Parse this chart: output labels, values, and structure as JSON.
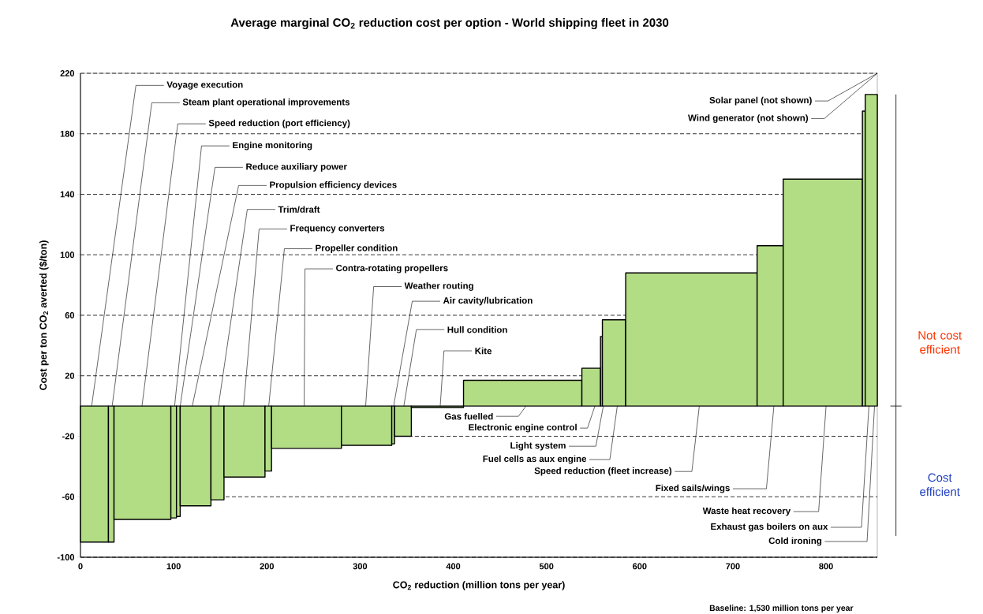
{
  "chart_data": {
    "type": "histogram",
    "title": "Average marginal CO$_{2}$ reduction cost per option - World shipping fleet in 2030",
    "xlabel": "CO$_{2}$ reduction (million tons per year)",
    "ylabel": "Cost per ton CO$_{2}$ averted ($/ton)",
    "bins": [
      0,
      30,
      36,
      97,
      103,
      107,
      140,
      154,
      198,
      205,
      280,
      334,
      337,
      355,
      411,
      538,
      558,
      560,
      585,
      726,
      754,
      839,
      842,
      855
    ],
    "values": [
      -90,
      -90,
      -75,
      -74,
      -73,
      -66,
      -62,
      -47,
      -43,
      -28,
      -26,
      -25,
      -20,
      -1,
      17,
      25,
      46,
      57,
      88,
      106,
      150,
      195,
      206
    ],
    "color": "#b3dd85",
    "xlim": [
      0,
      855
    ],
    "ylim": [
      -100,
      220
    ],
    "xticks": [
      0,
      100,
      200,
      300,
      400,
      500,
      600,
      700,
      800
    ],
    "yticks": [
      -100,
      -60,
      -20,
      20,
      60,
      100,
      140,
      180,
      220
    ],
    "grid": "y",
    "line_style": "dashed",
    "annotations": [
      {
        "text": "Voyage execution",
        "x": 12,
        "y": 0
      },
      {
        "text": "Steam plant operational improvements",
        "x": 34,
        "y": 0
      },
      {
        "text": "Speed reduction (port efficiency)",
        "x": 66,
        "y": 0
      },
      {
        "text": "Engine monitoring",
        "x": 101,
        "y": 0
      },
      {
        "text": "Reduce auxiliary power",
        "x": 107,
        "y": 0
      },
      {
        "text": "Propulsion efficiency devices",
        "x": 120,
        "y": 0
      },
      {
        "text": "Trim/draft",
        "x": 148,
        "y": 0
      },
      {
        "text": "Frequency converters",
        "x": 175,
        "y": 0
      },
      {
        "text": "Propeller condition",
        "x": 202,
        "y": 0
      },
      {
        "text": "Contra-rotating propellers",
        "x": 240,
        "y": 0
      },
      {
        "text": "Weather routing",
        "x": 306,
        "y": 0
      },
      {
        "text": "Air cavity/lubrication",
        "x": 336,
        "y": 0
      },
      {
        "text": "Hull condition",
        "x": 347,
        "y": 0
      },
      {
        "text": "Kite",
        "x": 386,
        "y": 0
      },
      {
        "text": "Gas fuelled",
        "x": 478,
        "y": 0
      },
      {
        "text": "Electronic engine control",
        "x": 552,
        "y": 0
      },
      {
        "text": "Light system",
        "x": 561,
        "y": 0
      },
      {
        "text": "Fuel cells as aux engine",
        "x": 576,
        "y": 0
      },
      {
        "text": "Speed reduction (fleet increase)",
        "x": 664,
        "y": 0
      },
      {
        "text": "Fixed sails/wings",
        "x": 744,
        "y": 0
      },
      {
        "text": "Waste heat recovery",
        "x": 800,
        "y": 0
      },
      {
        "text": "Exhaust gas boilers on aux",
        "x": 846,
        "y": 0
      },
      {
        "text": "Cold ironing",
        "x": 852,
        "y": 0
      },
      "Solar panel (not shown)",
      "Wind generator (not shown)",
      "Not cost efficient",
      "Cost efficient",
      "Baseline: 1,530 million tons per year"
    ]
  }
}
